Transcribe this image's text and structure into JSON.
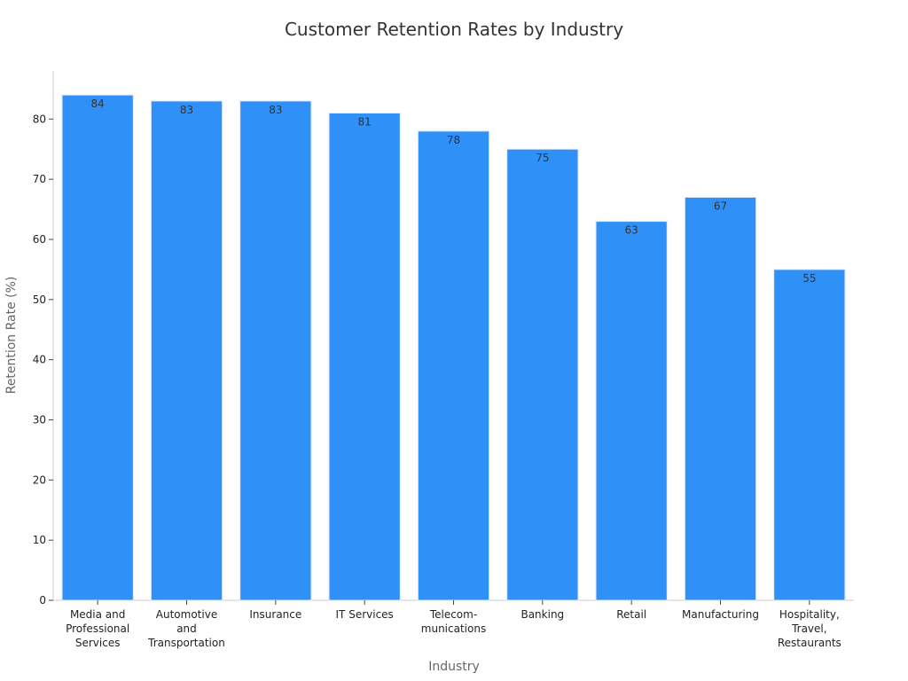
{
  "chart_data": {
    "type": "bar",
    "title": "Customer Retention Rates by Industry",
    "xlabel": "Industry",
    "ylabel": "Retention Rate (%)",
    "ylim": [
      0,
      88
    ],
    "yticks": [
      0,
      10,
      20,
      30,
      40,
      50,
      60,
      70,
      80
    ],
    "grid": false,
    "categories": [
      "Media and Professional Services",
      "Automotive and Transportation",
      "Insurance",
      "IT Services",
      "Telecommunications",
      "Banking",
      "Retail",
      "Manufacturing",
      "Hospitality, Travel, Restaurants"
    ],
    "category_label_lines": [
      [
        "Media and",
        "Professional",
        "Services"
      ],
      [
        "Automotive",
        "and",
        "Transportation"
      ],
      [
        "Insurance"
      ],
      [
        "IT Services"
      ],
      [
        "Telecom-",
        "munications"
      ],
      [
        "Banking"
      ],
      [
        "Retail"
      ],
      [
        "Manufacturing"
      ],
      [
        "Hospitality,",
        "Travel,",
        "Restaurants"
      ]
    ],
    "values": [
      84,
      83,
      83,
      81,
      78,
      75,
      63,
      67,
      55
    ],
    "colors": {
      "bar": "#2f91f7",
      "bar_edge": "#dfe9f5",
      "axis": "#cccccc",
      "text": "#222222"
    }
  }
}
